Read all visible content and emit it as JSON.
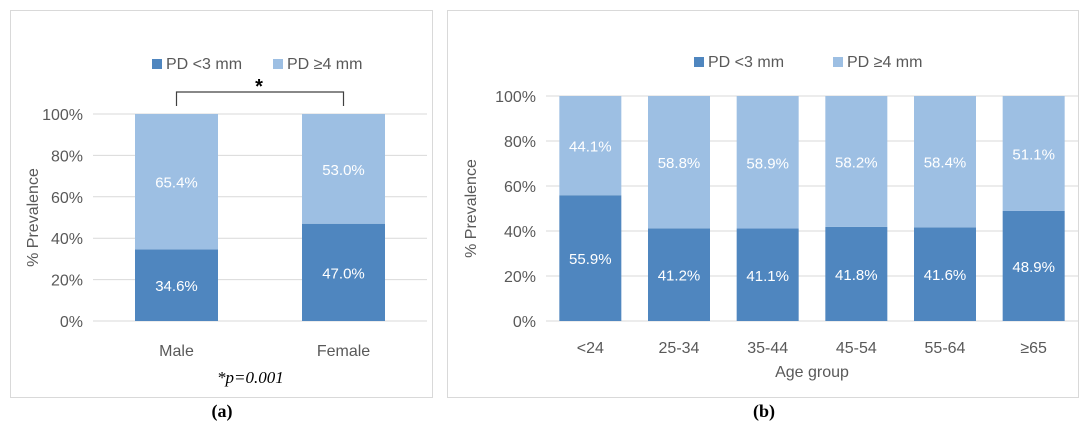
{
  "colors": {
    "lower": "#4f86bf",
    "upper": "#9dbfe3",
    "grid": "#d9d9d9",
    "text": "#595959"
  },
  "charts": [
    {
      "id": "a",
      "caption": "(a)",
      "significance_marker": "*",
      "note": "*p=0.001"
    },
    {
      "id": "b",
      "caption": "(b)"
    }
  ],
  "chart_data": [
    {
      "type": "bar",
      "stacked": true,
      "title": "",
      "xlabel": "",
      "ylabel": "% Prevalence",
      "ylim": [
        0,
        100
      ],
      "yticks": [
        "0%",
        "20%",
        "40%",
        "60%",
        "80%",
        "100%"
      ],
      "categories": [
        "Male",
        "Female"
      ],
      "series": [
        {
          "name": "PD <3 mm",
          "values": [
            34.6,
            47.0
          ],
          "labels": [
            "34.6%",
            "47.0%"
          ]
        },
        {
          "name": "PD ≥4 mm",
          "values": [
            65.4,
            53.0
          ],
          "labels": [
            "65.4%",
            "53.0%"
          ]
        }
      ],
      "legend": "top",
      "grid": true
    },
    {
      "type": "bar",
      "stacked": true,
      "title": "",
      "xlabel": "Age group",
      "ylabel": "% Prevalence",
      "ylim": [
        0,
        100
      ],
      "yticks": [
        "0%",
        "20%",
        "40%",
        "60%",
        "80%",
        "100%"
      ],
      "categories": [
        "<24",
        "25-34",
        "35-44",
        "45-54",
        "55-64",
        "≥65"
      ],
      "series": [
        {
          "name": "PD <3 mm",
          "values": [
            55.9,
            41.2,
            41.1,
            41.8,
            41.6,
            48.9
          ],
          "labels": [
            "55.9%",
            "41.2%",
            "41.1%",
            "41.8%",
            "41.6%",
            "48.9%"
          ]
        },
        {
          "name": "PD ≥4 mm",
          "values": [
            44.1,
            58.8,
            58.9,
            58.2,
            58.4,
            51.1
          ],
          "labels": [
            "44.1%",
            "58.8%",
            "58.9%",
            "58.2%",
            "58.4%",
            "51.1%"
          ]
        }
      ],
      "legend": "top",
      "grid": true
    }
  ]
}
